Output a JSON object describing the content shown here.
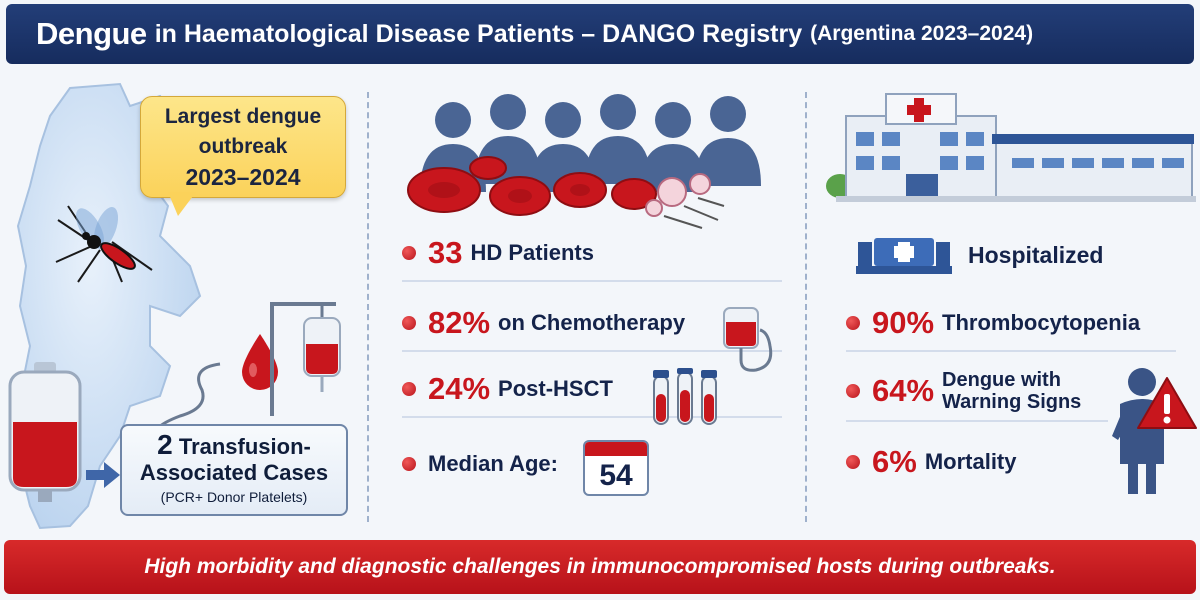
{
  "header": {
    "title_main": "Dengue",
    "title_rest": "in Haematological Disease Patients – DANGO Registry",
    "title_paren": "(Argentina 2023–2024)"
  },
  "left": {
    "bubble": {
      "line1": "Largest dengue",
      "line2": "outbreak",
      "line3": "2023–2024"
    },
    "transfusion": {
      "number": "2",
      "line1": "Transfusion-",
      "line2": "Associated Cases",
      "line3": "(PCR+ Donor Platelets)"
    }
  },
  "middle": {
    "stats": [
      {
        "value": "33",
        "label": "HD Patients"
      },
      {
        "value": "82%",
        "label": "on Chemotherapy"
      },
      {
        "value": "24%",
        "label": "Post-HSCT"
      },
      {
        "value": "",
        "label": "Median Age:"
      }
    ],
    "median_age": "54"
  },
  "right": {
    "hospitalized_label": "Hospitalized",
    "stats": [
      {
        "value": "90%",
        "label": "Thrombocytopenia"
      },
      {
        "value": "64%",
        "label_line1": "Dengue with",
        "label_line2": "Warning Signs"
      },
      {
        "value": "6%",
        "label": "Mortality"
      }
    ]
  },
  "footer": {
    "text": "High morbidity and diagnostic challenges in immunocompromised hosts during outbreaks."
  },
  "colors": {
    "header_navy": "#1c3369",
    "accent_red": "#c8161d",
    "text_navy": "#14234a",
    "bubble_yellow": "#fbd25a",
    "map_blue": "#c7dcf2"
  },
  "icons": [
    "argentina-map-icon",
    "mosquito-icon",
    "blood-bag-icon",
    "iv-drip-icon",
    "blood-drop-icon",
    "patients-group-icon",
    "red-blood-cells-icon",
    "iv-bag-icon",
    "test-tubes-icon",
    "calendar-icon",
    "hospital-building-icon",
    "ambulance-cross-icon",
    "warning-triangle-icon",
    "patient-figure-icon"
  ]
}
